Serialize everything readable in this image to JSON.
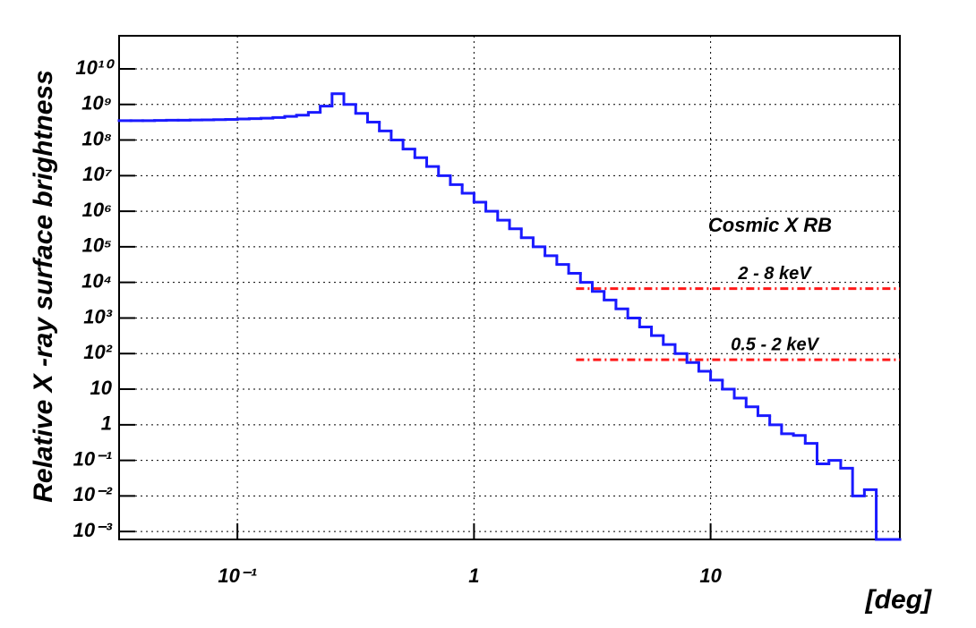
{
  "chart_data": {
    "type": "histogram",
    "x_label": "[deg]",
    "y_label": "Relative X -ray  surface  brightness",
    "annotation": "Cosmic X RB",
    "annotation_color": "#ff1a1a",
    "log_x": true,
    "log_y": true,
    "grid": true,
    "color": "#1a1aff",
    "xlim": [
      0.03162,
      63.1
    ],
    "ylim": [
      0.0006,
      85000000000
    ],
    "xticks": [
      {
        "value": 0.1,
        "label": "10⁻¹"
      },
      1,
      10
    ],
    "yticks": [
      {
        "value": 0.001,
        "label": "10⁻³"
      },
      {
        "value": 0.01,
        "label": "10⁻²"
      },
      {
        "value": 0.1,
        "label": "10⁻¹"
      },
      1,
      10,
      {
        "value": 100,
        "label": "10²"
      },
      {
        "value": 1000,
        "label": "10³"
      },
      {
        "value": 10000,
        "label": "10⁴"
      },
      {
        "value": 100000,
        "label": "10⁵"
      },
      {
        "value": 1000000,
        "label": "10⁶"
      },
      {
        "value": 10000000,
        "label": "10⁷"
      },
      {
        "value": 100000000,
        "label": "10⁸"
      },
      {
        "value": 1000000000,
        "label": "10⁹"
      },
      {
        "value": 10000000000,
        "label": "10¹⁰"
      }
    ],
    "bins": [
      0.03162,
      0.03548,
      0.03981,
      0.04467,
      0.05012,
      0.05623,
      0.0631,
      0.07079,
      0.07943,
      0.08913,
      0.1,
      0.1122,
      0.1259,
      0.1413,
      0.1585,
      0.1778,
      0.1995,
      0.2239,
      0.2512,
      0.2818,
      0.3162,
      0.3548,
      0.3981,
      0.4467,
      0.5012,
      0.5623,
      0.631,
      0.7079,
      0.7943,
      0.8913,
      1,
      1.122,
      1.259,
      1.413,
      1.585,
      1.778,
      1.995,
      2.239,
      2.512,
      2.818,
      3.162,
      3.548,
      3.981,
      4.467,
      5.012,
      5.623,
      6.31,
      7.079,
      7.943,
      8.913,
      10,
      11.22,
      12.59,
      14.13,
      15.85,
      17.78,
      19.95,
      22.39,
      25.12,
      28.18,
      31.62,
      35.48,
      39.81,
      44.67,
      50.12,
      56.23,
      63.1
    ],
    "values": [
      350000000,
      350000000,
      350000000,
      355000000,
      360000000,
      360000000,
      365000000,
      370000000,
      375000000,
      380000000,
      390000000,
      400000000,
      410000000,
      430000000,
      460000000,
      500000000,
      600000000,
      900000000,
      2000000000,
      1000000000,
      560000000,
      320000000,
      180000000,
      100000000,
      56000000,
      32000000,
      18000000,
      10000000,
      5600000,
      3200000,
      1800000,
      1000000,
      560000,
      320000,
      180000,
      100000,
      56000,
      32000,
      18000,
      10000,
      5600,
      3200,
      1800,
      1000,
      560,
      320,
      180,
      100,
      56,
      32,
      18,
      10,
      5.6,
      3.2,
      1.8,
      1,
      0.56,
      0.5,
      0.3,
      0.08,
      0.1,
      0.06,
      0.01,
      0.015,
      0.0006,
      0.0006
    ],
    "reference_lines": [
      {
        "label": "2  -  8  keV",
        "value": 6700,
        "x_start": 2.7,
        "color": "#ff1a1a"
      },
      {
        "label": "0.5  -  2  keV",
        "value": 67,
        "x_start": 2.7,
        "color": "#ff1a1a"
      }
    ]
  }
}
